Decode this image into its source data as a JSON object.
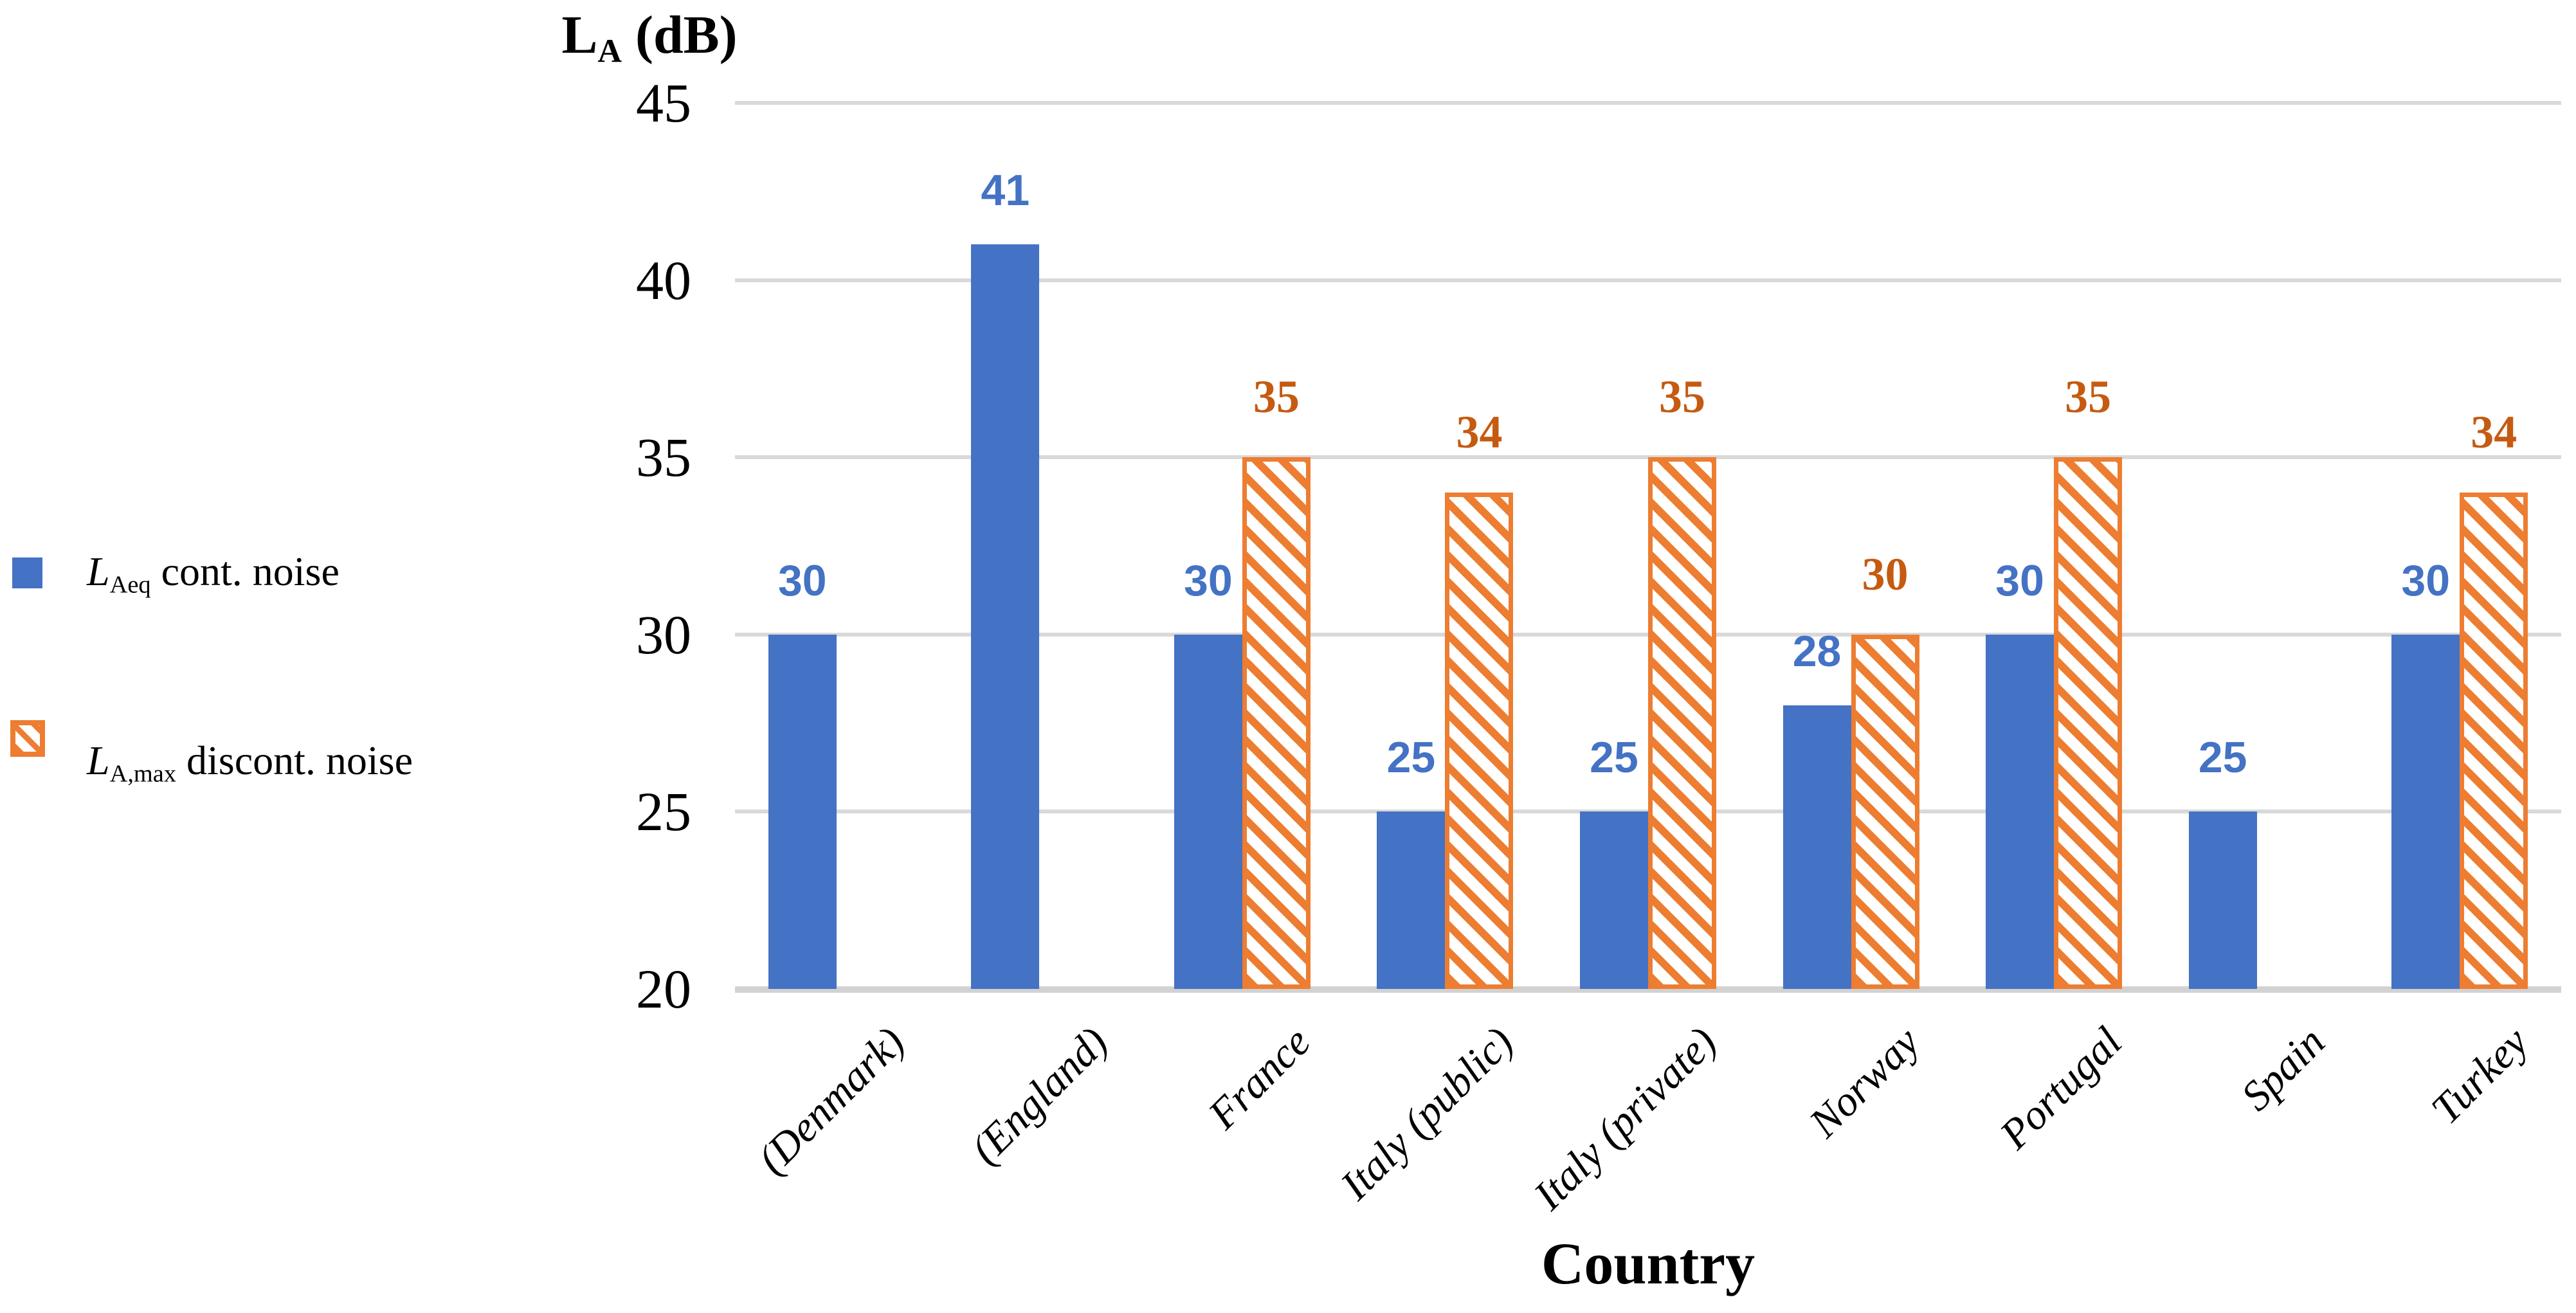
{
  "y_axis": {
    "title_l": "L",
    "title_sub": "A",
    "title_rest": " (dB)"
  },
  "x_axis": {
    "title": "Country"
  },
  "legend": {
    "items": [
      {
        "l": "L",
        "sub": "Aeq",
        "rest": " cont. noise"
      },
      {
        "l": "L",
        "sub": "A,max",
        "rest": " discont. noise"
      }
    ]
  },
  "colors": {
    "blue_series": "#4472c4",
    "orange_series": "#ed7d31",
    "orange_label": "#c55a11",
    "gridline": "#d9d9d9",
    "axis_line": "#d2d2d2"
  },
  "chart_data": {
    "type": "bar",
    "title": "",
    "xlabel": "Country",
    "ylabel": "LA (dB)",
    "categories": [
      "(Denmark)",
      "(England)",
      "France",
      "Italy (public)",
      "Italy (private)",
      "Norway",
      "Portugal",
      "Spain",
      "Turkey"
    ],
    "series": [
      {
        "name": "LAeq cont. noise",
        "style": "solid",
        "color": "#4472c4",
        "values": [
          30,
          41,
          30,
          25,
          25,
          28,
          30,
          25,
          30
        ]
      },
      {
        "name": "LA,max discont. noise",
        "style": "hatched",
        "color": "#ed7d31",
        "values": [
          null,
          null,
          35,
          34,
          35,
          30,
          35,
          null,
          34
        ]
      }
    ],
    "ylim": [
      20,
      45
    ],
    "yticks": [
      45,
      40,
      35,
      30,
      25,
      20
    ],
    "grid": true,
    "legend_position": "left",
    "data_labels": true
  }
}
